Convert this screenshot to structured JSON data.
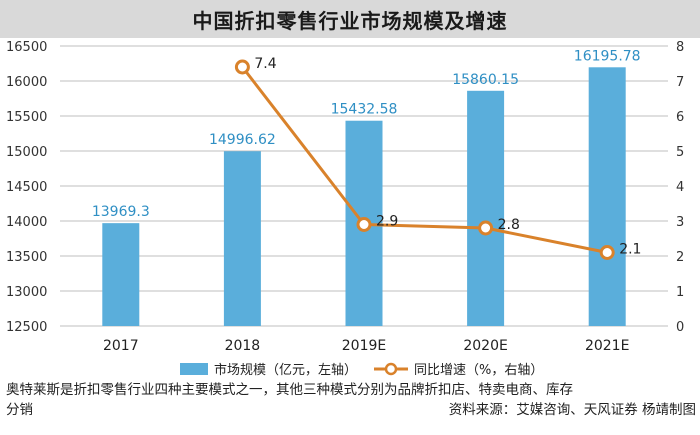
{
  "title": "中国折扣零售行业市场规模及增速",
  "chart_data": {
    "type": "bar+line",
    "categories": [
      "2017",
      "2018",
      "2019E",
      "2020E",
      "2021E"
    ],
    "series": [
      {
        "name": "市场规模（亿元，左轴）",
        "type": "bar",
        "axis": "left",
        "color": "#5aaedb",
        "values": [
          13969.3,
          14996.62,
          15432.58,
          15860.15,
          16195.78
        ],
        "labels": [
          "13969.3",
          "14996.62",
          "15432.58",
          "15860.15",
          "16195.78"
        ]
      },
      {
        "name": "同比增速（%，右轴）",
        "type": "line",
        "axis": "right",
        "color": "#d9822b",
        "values": [
          null,
          7.4,
          2.9,
          2.8,
          2.1
        ],
        "labels": [
          "",
          "7.4",
          "2.9",
          "2.8",
          "2.1"
        ]
      }
    ],
    "y_left": {
      "min": 12500,
      "max": 16500,
      "ticks": [
        12500,
        13000,
        13500,
        14000,
        14500,
        15000,
        15500,
        16000,
        16500
      ]
    },
    "y_right": {
      "min": 0,
      "max": 8,
      "ticks": [
        0,
        1,
        2,
        3,
        4,
        5,
        6,
        7,
        8
      ]
    },
    "grid": true,
    "legend_position": "bottom"
  },
  "footnote": {
    "line1": "奥特莱斯是折扣零售行业四种主要模式之一，其他三种模式分别为品牌折扣店、特卖电商、库存",
    "line2_left": "分销",
    "line2_right": "资料来源：艾媒咨询、天风证券  杨靖制图"
  }
}
